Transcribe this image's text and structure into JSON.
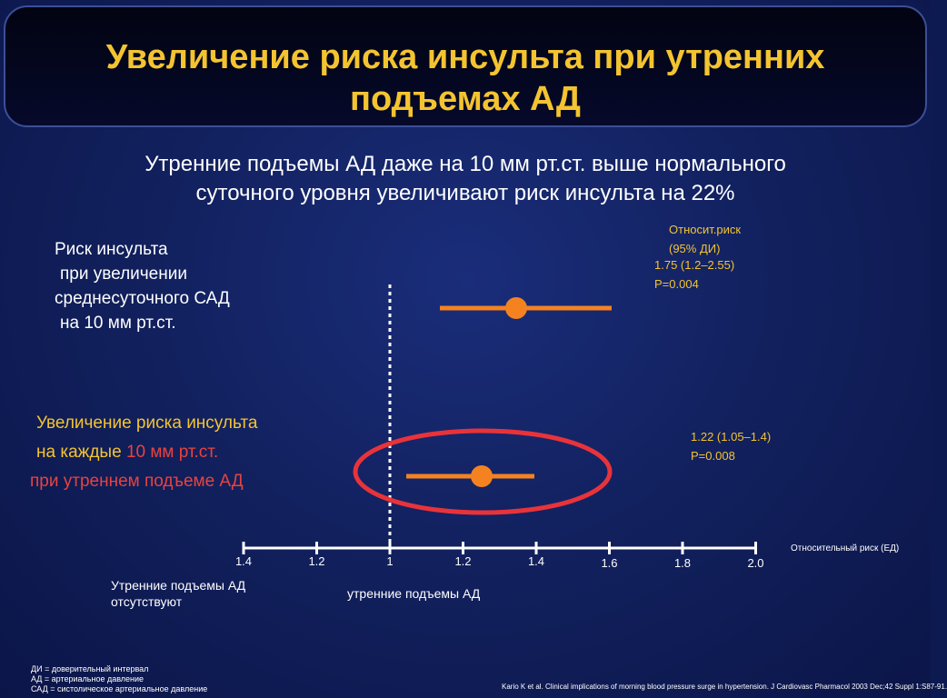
{
  "title_line1": "Увеличение риска инсульта при утренних",
  "title_line2": "подъемах АД",
  "subtitle_line1": "Утренние подъемы АД даже на 10 мм рт.ст. выше нормального",
  "subtitle_line2": "суточного уровня увеличивают риск инсульта на 22%",
  "label1": {
    "line1": "Риск инсульта",
    "line2": "при увеличении",
    "line3": "среднесуточного САД",
    "line4": "на  10 мм рт.ст."
  },
  "label2": {
    "line1": "Увеличение риска инсульта",
    "line2_a": "на каждые ",
    "line2_b": "10 мм рт.ст.",
    "line3": "при утреннем подъеме АД"
  },
  "stat1": {
    "header1": "Относит.риск",
    "header2": "(95% ДИ)",
    "value": "1.75 (1.2–2.55)",
    "p": "P=0.004"
  },
  "stat2": {
    "value": "1.22 (1.05–1.4)",
    "p": "P=0.008"
  },
  "axis_label_right": "Относительный риск (ЕД)",
  "axis_label_left_1": "Утренние подъемы АД",
  "axis_label_left_2": "отсутствуют",
  "axis_label_center": "утренние подъемы АД",
  "footnote": {
    "line1": "ДИ = доверительный интервал",
    "line2": "АД = артериальное давление",
    "line3": "САД = систолическое артериальное давление"
  },
  "citation": "Kario K et al. Clinical implications of morning blood pressure surge in hypertension. J Cardiovasc Pharmacol 2003 Dec;42 Suppl 1:S87-91.",
  "colors": {
    "background": "#12215f",
    "title": "#f4c430",
    "marker": "#f58220",
    "ellipse": "#e8333a",
    "axis": "#ffffff"
  },
  "chart_data": {
    "type": "forest",
    "xlabel": "Относительный риск (ЕД)",
    "ticks": [
      {
        "label": "1.4",
        "pos": 1
      },
      {
        "label": "1.2",
        "pos": 2
      },
      {
        "label": "1",
        "pos": 3
      },
      {
        "label": "1.2",
        "pos": 4
      },
      {
        "label": "1.4",
        "pos": 5
      },
      {
        "label": "1.6",
        "pos": 6
      },
      {
        "label": "1.8",
        "pos": 7
      },
      {
        "label": "2.0",
        "pos": 8
      }
    ],
    "reference_value": 1,
    "series": [
      {
        "estimate": 1.75,
        "ci": [
          1.2,
          2.55
        ],
        "p": 0.004
      },
      {
        "estimate": 1.22,
        "ci": [
          1.05,
          1.4
        ],
        "p": 0.008,
        "highlighted": true
      }
    ]
  }
}
